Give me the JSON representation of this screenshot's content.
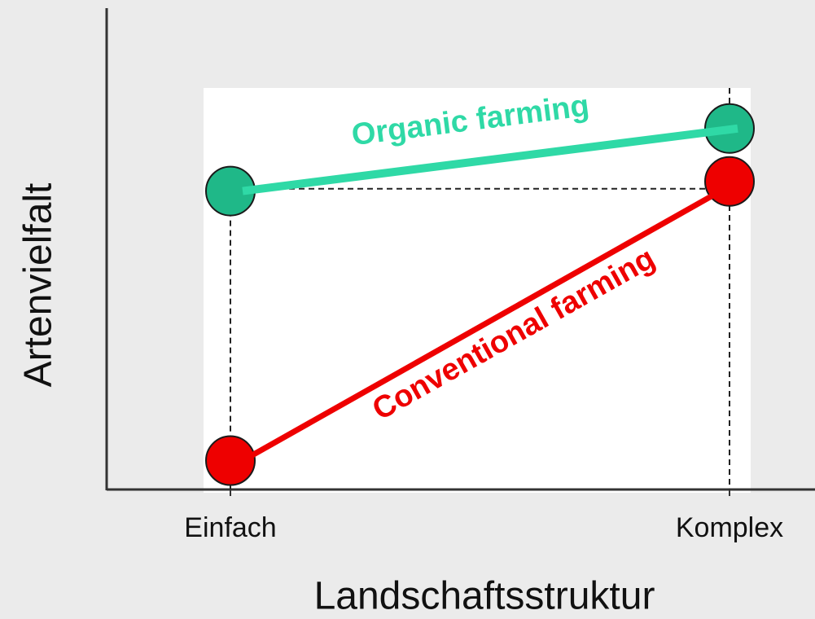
{
  "chart_data": {
    "type": "line",
    "categories": [
      "Einfach",
      "Komplex"
    ],
    "x_label": "Landschaftsstruktur",
    "y_label": "Artenvielfalt",
    "ylim": [
      0,
      100
    ],
    "series": [
      {
        "name": "Organic farming",
        "color": "#2fd9a6",
        "values": [
          62,
          75
        ]
      },
      {
        "name": "Conventional farming",
        "color": "#ee0000",
        "values": [
          6,
          64
        ]
      }
    ]
  }
}
